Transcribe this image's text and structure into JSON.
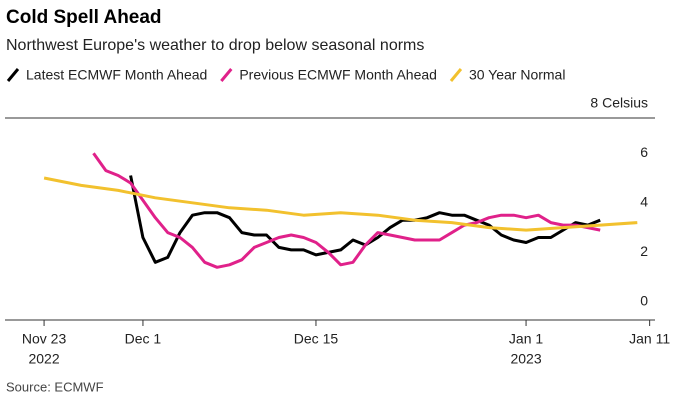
{
  "chart_data": {
    "type": "line",
    "title": "Cold Spell Ahead",
    "subtitle": "Northwest Europe's weather to drop below seasonal norms",
    "source": "Source: ECMWF",
    "xlim": [
      "2022-11-20",
      "2023-01-12"
    ],
    "xticks": [
      {
        "value": "2022-11-23",
        "label": [
          "Nov 23",
          "2022"
        ]
      },
      {
        "value": "2022-12-01",
        "label": [
          "Dec 1"
        ]
      },
      {
        "value": "2022-12-15",
        "label": [
          "Dec 15"
        ]
      },
      {
        "value": "2023-01-01",
        "label": [
          "Jan 1",
          "2023"
        ]
      },
      {
        "value": "2023-01-11",
        "label": [
          "Jan 11"
        ]
      }
    ],
    "ylim": [
      0,
      8
    ],
    "yticks": [
      0,
      2,
      4,
      6,
      {
        "value": 8,
        "label": "8 Celsius"
      }
    ],
    "series": [
      {
        "name": "Latest ECMWF Month Ahead",
        "color": "#000000",
        "x": [
          "2022-11-30",
          "2022-12-01",
          "2022-12-02",
          "2022-12-03",
          "2022-12-04",
          "2022-12-05",
          "2022-12-06",
          "2022-12-07",
          "2022-12-08",
          "2022-12-09",
          "2022-12-10",
          "2022-12-11",
          "2022-12-12",
          "2022-12-13",
          "2022-12-14",
          "2022-12-15",
          "2022-12-16",
          "2022-12-17",
          "2022-12-18",
          "2022-12-19",
          "2022-12-20",
          "2022-12-21",
          "2022-12-22",
          "2022-12-23",
          "2022-12-24",
          "2022-12-25",
          "2022-12-26",
          "2022-12-27",
          "2022-12-28",
          "2022-12-29",
          "2022-12-30",
          "2022-12-31",
          "2023-01-01",
          "2023-01-02",
          "2023-01-03",
          "2023-01-04",
          "2023-01-05",
          "2023-01-06",
          "2023-01-07"
        ],
        "values": [
          5.1,
          2.6,
          1.6,
          1.8,
          2.8,
          3.5,
          3.6,
          3.6,
          3.4,
          2.8,
          2.7,
          2.7,
          2.2,
          2.1,
          2.1,
          1.9,
          2.0,
          2.1,
          2.5,
          2.3,
          2.6,
          3.0,
          3.3,
          3.3,
          3.4,
          3.6,
          3.5,
          3.5,
          3.3,
          3.1,
          2.7,
          2.5,
          2.4,
          2.6,
          2.6,
          2.9,
          3.2,
          3.1,
          3.3
        ]
      },
      {
        "name": "Previous ECMWF Month Ahead",
        "color": "#e0218a",
        "x": [
          "2022-11-27",
          "2022-11-28",
          "2022-11-29",
          "2022-11-30",
          "2022-12-01",
          "2022-12-02",
          "2022-12-03",
          "2022-12-04",
          "2022-12-05",
          "2022-12-06",
          "2022-12-07",
          "2022-12-08",
          "2022-12-09",
          "2022-12-10",
          "2022-12-11",
          "2022-12-12",
          "2022-12-13",
          "2022-12-14",
          "2022-12-15",
          "2022-12-16",
          "2022-12-17",
          "2022-12-18",
          "2022-12-19",
          "2022-12-20",
          "2022-12-21",
          "2022-12-22",
          "2022-12-23",
          "2022-12-24",
          "2022-12-25",
          "2022-12-26",
          "2022-12-27",
          "2022-12-28",
          "2022-12-29",
          "2022-12-30",
          "2022-12-31",
          "2023-01-01",
          "2023-01-02",
          "2023-01-03",
          "2023-01-04",
          "2023-01-05",
          "2023-01-06",
          "2023-01-07"
        ],
        "values": [
          6.0,
          5.3,
          5.1,
          4.8,
          4.1,
          3.4,
          2.8,
          2.6,
          2.2,
          1.6,
          1.4,
          1.5,
          1.7,
          2.2,
          2.4,
          2.6,
          2.7,
          2.6,
          2.4,
          2.0,
          1.5,
          1.6,
          2.3,
          2.8,
          2.7,
          2.6,
          2.5,
          2.5,
          2.5,
          2.8,
          3.1,
          3.2,
          3.4,
          3.5,
          3.5,
          3.4,
          3.5,
          3.2,
          3.1,
          3.1,
          3.0,
          2.9
        ]
      },
      {
        "name": "30 Year Normal",
        "color": "#f2c12e",
        "x": [
          "2022-11-23",
          "2022-11-26",
          "2022-11-29",
          "2022-12-02",
          "2022-12-05",
          "2022-12-08",
          "2022-12-11",
          "2022-12-14",
          "2022-12-17",
          "2022-12-20",
          "2022-12-23",
          "2022-12-26",
          "2022-12-29",
          "2023-01-01",
          "2023-01-04",
          "2023-01-07",
          "2023-01-10"
        ],
        "values": [
          5.0,
          4.7,
          4.5,
          4.2,
          4.0,
          3.8,
          3.7,
          3.5,
          3.6,
          3.5,
          3.3,
          3.2,
          3.0,
          2.9,
          3.0,
          3.1,
          3.2
        ]
      }
    ]
  }
}
